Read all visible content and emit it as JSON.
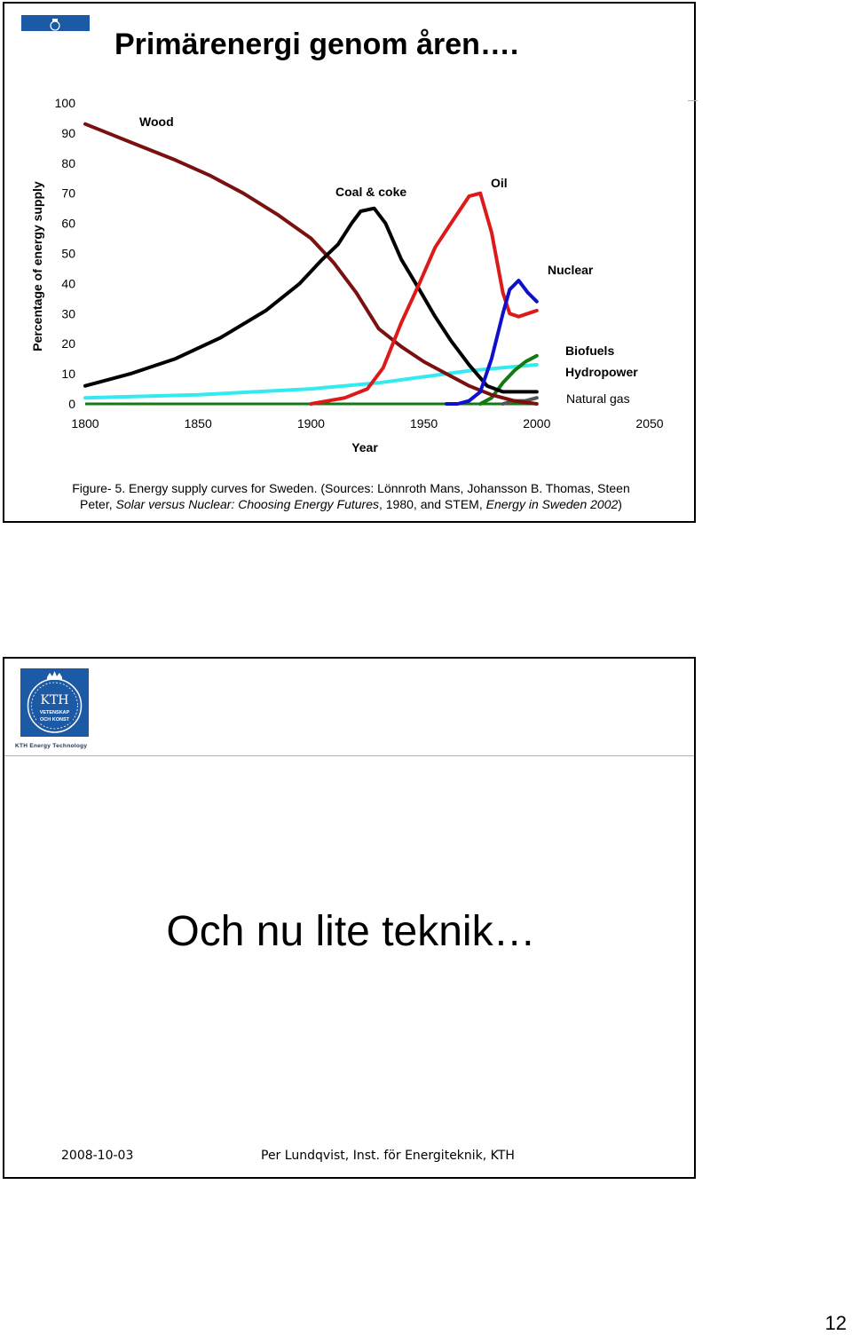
{
  "slide1": {
    "title": "Primärenergi genom åren….",
    "caption_line1": "Figure- 5. Energy supply curves for Sweden. (Sources: Lönnroth Mans, Johansson B. Thomas, Steen",
    "caption_line2_a": "Peter, ",
    "caption_line2_b": "Solar versus Nuclear: Choosing Energy Futures",
    "caption_line2_c": ", 1980, and STEM, ",
    "caption_line2_d": "Energy in Sweden 2002",
    "caption_line2_e": ")"
  },
  "chart_data": {
    "type": "line",
    "title": "",
    "xlabel": "Year",
    "ylabel": "Percentage of energy supply",
    "xlim": [
      1800,
      2050
    ],
    "ylim": [
      0,
      100
    ],
    "xticks": [
      1800,
      1850,
      1900,
      1950,
      2000,
      2050
    ],
    "yticks": [
      0,
      10,
      20,
      30,
      40,
      50,
      60,
      70,
      80,
      90,
      100
    ],
    "grid": false,
    "legend": "series labels placed directly on the plot",
    "series": [
      {
        "name": "Wood",
        "color": "#7b1010",
        "x": [
          1800,
          1820,
          1840,
          1855,
          1870,
          1885,
          1900,
          1910,
          1920,
          1930,
          1940,
          1950,
          1960,
          1970,
          1980,
          1990,
          2000
        ],
        "values": [
          93,
          87,
          81,
          76,
          70,
          63,
          55,
          47,
          37,
          25,
          19,
          14,
          10,
          6,
          3,
          1,
          0
        ]
      },
      {
        "name": "Coal & coke",
        "color": "#000000",
        "x": [
          1800,
          1820,
          1840,
          1860,
          1880,
          1895,
          1905,
          1912,
          1918,
          1922,
          1928,
          1933,
          1940,
          1948,
          1955,
          1962,
          1970,
          1978,
          1985,
          1992,
          2000
        ],
        "values": [
          6,
          10,
          15,
          22,
          31,
          40,
          48,
          53,
          60,
          64,
          65,
          60,
          48,
          38,
          29,
          21,
          13,
          6,
          4,
          4,
          4
        ]
      },
      {
        "name": "Oil",
        "color": "#dd1a1a",
        "x": [
          1900,
          1915,
          1925,
          1932,
          1940,
          1948,
          1955,
          1962,
          1970,
          1975,
          1980,
          1985,
          1988,
          1992,
          1996,
          2000
        ],
        "values": [
          0,
          2,
          5,
          12,
          27,
          40,
          52,
          60,
          69,
          70,
          57,
          37,
          30,
          29,
          30,
          31
        ]
      },
      {
        "name": "Nuclear",
        "color": "#1010cc",
        "x": [
          1960,
          1965,
          1970,
          1975,
          1980,
          1985,
          1988,
          1992,
          1996,
          2000
        ],
        "values": [
          0,
          0,
          1,
          4,
          15,
          30,
          38,
          41,
          37,
          34
        ]
      },
      {
        "name": "Biofuels",
        "color": "#117a11",
        "x": [
          1975,
          1980,
          1985,
          1990,
          1995,
          2000
        ],
        "values": [
          0,
          2,
          7,
          11,
          14,
          16
        ]
      },
      {
        "name": "Hydropower",
        "color": "#33eaf0",
        "x": [
          1800,
          1850,
          1900,
          1930,
          1950,
          1970,
          1985,
          2000
        ],
        "values": [
          2,
          3,
          5,
          7,
          9,
          11,
          12,
          13
        ]
      },
      {
        "name": "Natural gas",
        "color": "#555555",
        "x": [
          1985,
          1990,
          1995,
          2000
        ],
        "values": [
          0,
          1,
          1,
          2
        ]
      }
    ]
  },
  "slide2": {
    "logo_text_main": "KTH",
    "logo_text_sub1": "VETENSKAP",
    "logo_text_sub2": "OCH KONST",
    "logo_subtitle": "KTH Energy Technology",
    "heading": "Och nu lite teknik…",
    "footer_date": "2008-10-03",
    "footer_author": "Per Lundqvist, Inst. för Energiteknik, KTH"
  },
  "page_number": "12",
  "colors": {
    "kth_blue": "#1d5aa5",
    "accent_line": "#c8c800"
  }
}
